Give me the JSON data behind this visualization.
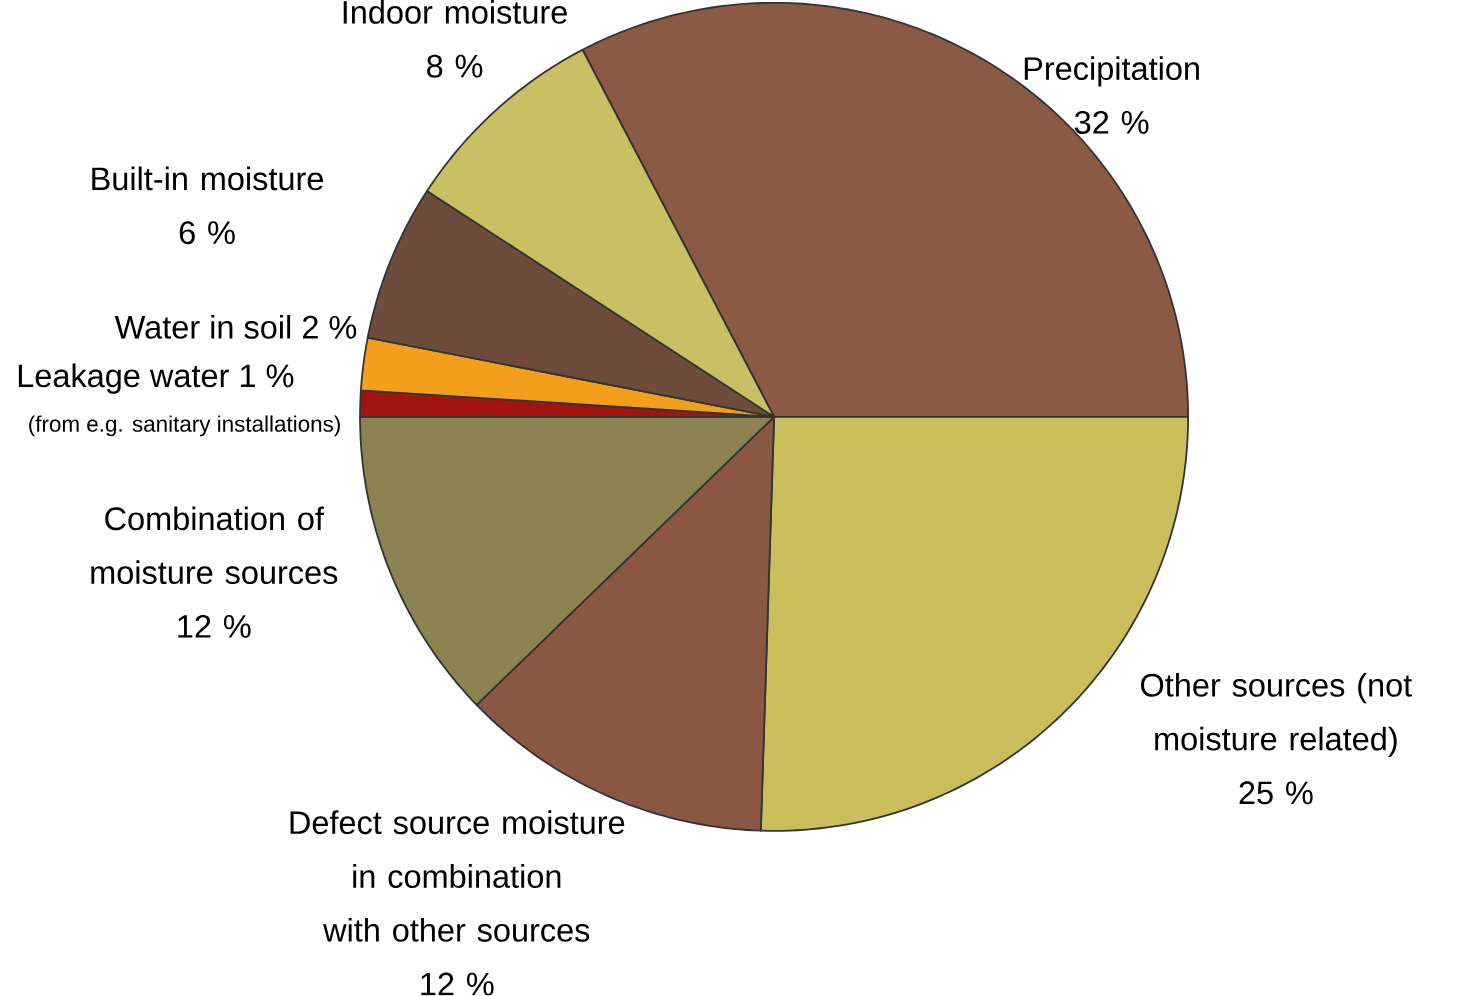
{
  "chart_data": {
    "type": "pie",
    "categories": [
      "Precipitation",
      "Other sources (not moisture related)",
      "Defect source moisture in combination with other sources",
      "Combination of moisture sources",
      "Leakage water",
      "Water in soil",
      "Built-in moisture",
      "Indoor moisture"
    ],
    "values": [
      32,
      25,
      12,
      12,
      1,
      2,
      6,
      8
    ],
    "value_labels": [
      "32 %",
      "25 %",
      "12 %",
      "12 %",
      "1 %",
      "2 %",
      "6 %",
      "8 %"
    ],
    "colors": [
      "#8b5a45",
      "#c9bd5c",
      "#8a5842",
      "#8c8352",
      "#a3140f",
      "#f2a01c",
      "#6e4c3c",
      "#c8c062"
    ],
    "annotations": [
      "(from e.g. sanitary installations)"
    ]
  }
}
